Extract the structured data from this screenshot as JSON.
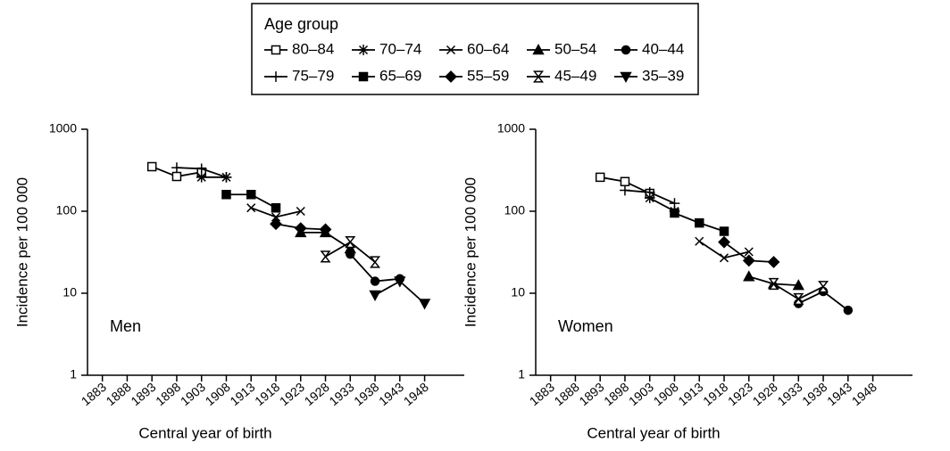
{
  "legend_title": "Age group",
  "chart_data": [
    {
      "type": "line",
      "label": "Men",
      "ylabel": "Incidence per 100 000",
      "xlabel": "Central year of birth",
      "xlim": [
        1880,
        1956
      ],
      "xticks": [
        1883,
        1888,
        1893,
        1898,
        1903,
        1908,
        1913,
        1918,
        1923,
        1928,
        1933,
        1938,
        1943,
        1948
      ],
      "ylim": [
        1,
        1000
      ],
      "yticks": [
        1,
        10,
        100,
        1000
      ],
      "log_y": true,
      "color": "#000000",
      "series": [
        {
          "name": "80–84",
          "marker": "open-square",
          "x": [
            1893,
            1898,
            1903
          ],
          "values": [
            350,
            265,
            300
          ]
        },
        {
          "name": "70–74",
          "marker": "asterisk",
          "x": [
            1903,
            1908
          ],
          "values": [
            260,
            260
          ]
        },
        {
          "name": "60–64",
          "marker": "cross",
          "x": [
            1913,
            1918,
            1923
          ],
          "values": [
            110,
            85,
            100
          ]
        },
        {
          "name": "50–54",
          "marker": "triangle-up",
          "x": [
            1923,
            1928,
            1933
          ],
          "values": [
            55,
            55,
            35
          ]
        },
        {
          "name": "40–44",
          "marker": "circle",
          "x": [
            1933,
            1938,
            1943
          ],
          "values": [
            30,
            14,
            15
          ]
        },
        {
          "name": "75–79",
          "marker": "plus",
          "x": [
            1898,
            1903,
            1908
          ],
          "values": [
            340,
            330,
            260
          ]
        },
        {
          "name": "65–69",
          "marker": "square",
          "x": [
            1908,
            1913,
            1918
          ],
          "values": [
            160,
            160,
            110
          ]
        },
        {
          "name": "55–59",
          "marker": "diamond",
          "x": [
            1918,
            1923,
            1928
          ],
          "values": [
            70,
            62,
            60
          ]
        },
        {
          "name": "45–49",
          "marker": "hourglass",
          "x": [
            1928,
            1933,
            1938
          ],
          "values": [
            28,
            42,
            24
          ]
        },
        {
          "name": "35–39",
          "marker": "triangle-down",
          "x": [
            1938,
            1943,
            1948
          ],
          "values": [
            9.5,
            14,
            7.5
          ]
        }
      ]
    },
    {
      "type": "line",
      "label": "Women",
      "ylabel": "Incidence per 100 000",
      "xlabel": "Central year of birth",
      "xlim": [
        1880,
        1956
      ],
      "xticks": [
        1883,
        1888,
        1893,
        1898,
        1903,
        1908,
        1913,
        1918,
        1923,
        1928,
        1933,
        1938,
        1943,
        1948
      ],
      "ylim": [
        1,
        1000
      ],
      "yticks": [
        1,
        10,
        100,
        1000
      ],
      "log_y": true,
      "color": "#000000",
      "series": [
        {
          "name": "80–84",
          "marker": "open-square",
          "x": [
            1893,
            1898,
            1903
          ],
          "values": [
            260,
            230,
            165
          ]
        },
        {
          "name": "70–74",
          "marker": "asterisk",
          "x": [
            1903,
            1908
          ],
          "values": [
            145,
            100
          ]
        },
        {
          "name": "60–64",
          "marker": "cross",
          "x": [
            1913,
            1918,
            1923
          ],
          "values": [
            43,
            27,
            32
          ]
        },
        {
          "name": "50–54",
          "marker": "triangle-up",
          "x": [
            1923,
            1928,
            1933
          ],
          "values": [
            16,
            13,
            12.5
          ]
        },
        {
          "name": "40–44",
          "marker": "circle",
          "x": [
            1933,
            1938,
            1943
          ],
          "values": [
            7.5,
            10.5,
            6.2
          ]
        },
        {
          "name": "75–79",
          "marker": "plus",
          "x": [
            1898,
            1903,
            1908
          ],
          "values": [
            180,
            170,
            125
          ]
        },
        {
          "name": "65–69",
          "marker": "square",
          "x": [
            1908,
            1913,
            1918
          ],
          "values": [
            95,
            72,
            57
          ]
        },
        {
          "name": "55–59",
          "marker": "diamond",
          "x": [
            1918,
            1923,
            1928
          ],
          "values": [
            42,
            25,
            24
          ]
        },
        {
          "name": "45–49",
          "marker": "hourglass",
          "x": [
            1928,
            1933,
            1938
          ],
          "values": [
            13,
            8.5,
            12
          ]
        }
      ]
    }
  ]
}
